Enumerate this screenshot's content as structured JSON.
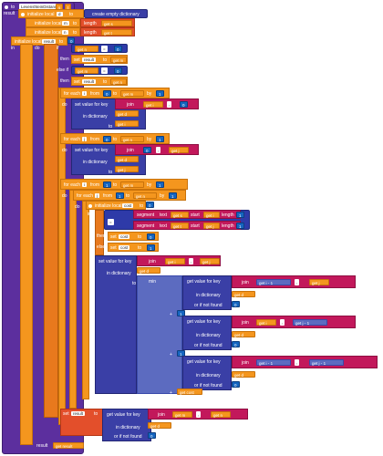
{
  "procedure": {
    "to_label": "to",
    "name": "LevenshteinDistance",
    "params": [
      "s",
      "t"
    ],
    "result_label": "result"
  },
  "init_locals": {
    "label": "initialize local",
    "to_label": "to",
    "d_name": "d",
    "d_value": "create empty dictionary",
    "m_name": "m",
    "m_value": "length",
    "m_arg": "get",
    "m_var": "s",
    "n_name": "n",
    "n_value": "length",
    "n_arg": "get",
    "n_var": "t",
    "result_name": "result",
    "result_value": "0",
    "in_label": "in"
  },
  "do_label": "do",
  "if_block": {
    "if_label": "if",
    "then_label": "then",
    "elseif_label": "else if",
    "else_label": "else",
    "set_label": "set",
    "result_var": "result",
    "to_label": "to",
    "get_label": "get",
    "eq_op": "=",
    "var_n": "n",
    "var_m": "m",
    "zero": "0"
  },
  "for_each_label": "for each",
  "from_label": "from",
  "to_label": "to",
  "by_label": "by",
  "var_i": "i",
  "var_j": "j",
  "one": "1",
  "set_value_for_key": "set value for key",
  "join_label": "join",
  "in_dictionary_label": "in dictionary",
  "to_value_label": "to",
  "get_label": "get",
  "var_d": "d",
  "cost_var": "cost",
  "segment_label": "segment",
  "text_label": "text",
  "start_label": "start",
  "length_label": "length",
  "min_label": "min",
  "get_value_for_key": "get value for key",
  "or_if_not_found": "or if not found",
  "plus": "+",
  "minus": "-",
  "eq_op": "=",
  "comma": ","
}
